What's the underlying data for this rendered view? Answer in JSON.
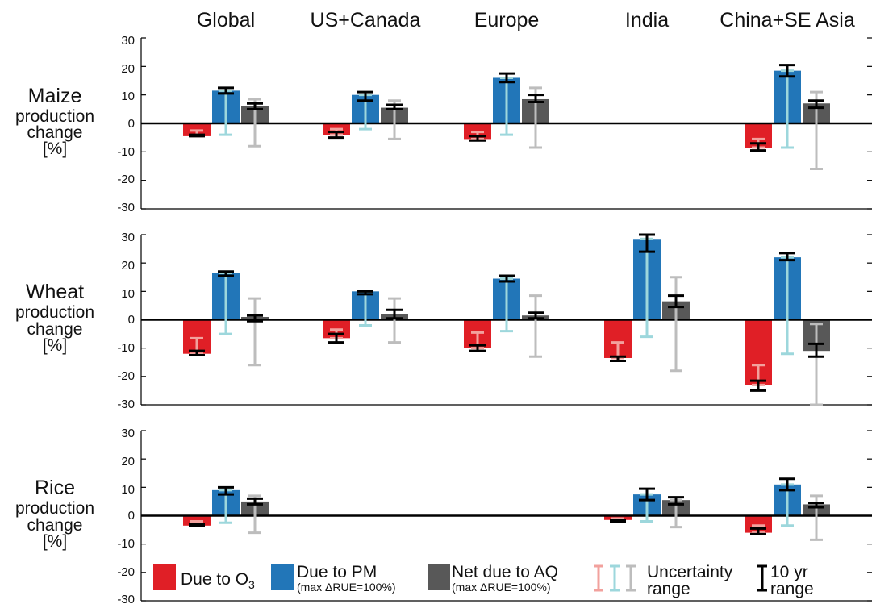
{
  "chart_data": {
    "type": "bar",
    "regions": [
      "Global",
      "US+Canada",
      "Europe",
      "India",
      "China+SE Asia"
    ],
    "panels": [
      {
        "crop": "Maize",
        "ylabel_lines": [
          "production",
          "change",
          "[%]"
        ],
        "ylim": [
          -30,
          30
        ],
        "yticks": [
          "30",
          "20",
          "10",
          "0",
          "-10",
          "-20",
          "-30"
        ],
        "bars": [
          {
            "region": "Global",
            "o3": -4.5,
            "pm": 11.5,
            "aq": 6.0,
            "o3_unc": [
              -4.5,
              -2.5
            ],
            "pm_unc": [
              -4,
              11.5
            ],
            "aq_unc": [
              -8,
              8.5
            ],
            "o3_10yr": [
              -4.5,
              -4.0
            ],
            "pm_10yr": [
              10.5,
              12.5
            ],
            "aq_10yr": [
              5.0,
              7.0
            ]
          },
          {
            "region": "US+Canada",
            "o3": -4.0,
            "pm": 10.0,
            "aq": 5.5,
            "o3_unc": [
              -4.0,
              -2.0
            ],
            "pm_unc": [
              -2,
              10.0
            ],
            "aq_unc": [
              -5.5,
              8.0
            ],
            "o3_10yr": [
              -5.0,
              -3.0
            ],
            "pm_10yr": [
              8.0,
              11.0
            ],
            "aq_10yr": [
              5.0,
              6.5
            ]
          },
          {
            "region": "Europe",
            "o3": -5.5,
            "pm": 16.0,
            "aq": 8.5,
            "o3_unc": [
              -5.5,
              -3.0
            ],
            "pm_unc": [
              -4,
              16.0
            ],
            "aq_unc": [
              -8.5,
              12.5
            ],
            "o3_10yr": [
              -6.0,
              -4.5
            ],
            "pm_10yr": [
              14.5,
              17.5
            ],
            "aq_10yr": [
              7.5,
              10.0
            ]
          },
          {
            "region": "India",
            "o3": null,
            "pm": null,
            "aq": null
          },
          {
            "region": "China+SE Asia",
            "o3": -8.5,
            "pm": 18.5,
            "aq": 7.0,
            "o3_unc": [
              -8.5,
              -5.5
            ],
            "pm_unc": [
              -8.5,
              18.5
            ],
            "aq_unc": [
              -16,
              11.0
            ],
            "o3_10yr": [
              -9.5,
              -7.0
            ],
            "pm_10yr": [
              16.5,
              20.5
            ],
            "aq_10yr": [
              5.5,
              8.0
            ]
          }
        ]
      },
      {
        "crop": "Wheat",
        "ylabel_lines": [
          "production",
          "change",
          "[%]"
        ],
        "ylim": [
          -30,
          30
        ],
        "yticks": [
          "30",
          "20",
          "10",
          "0",
          "-10",
          "-20",
          "-30"
        ],
        "bars": [
          {
            "region": "Global",
            "o3": -12.0,
            "pm": 16.5,
            "aq": 1.0,
            "o3_unc": [
              -12.0,
              -6.5
            ],
            "pm_unc": [
              -5,
              16.5
            ],
            "aq_unc": [
              -16,
              7.5
            ],
            "o3_10yr": [
              -12.5,
              -11.0
            ],
            "pm_10yr": [
              15.5,
              17.0
            ],
            "aq_10yr": [
              -0.5,
              1.5
            ]
          },
          {
            "region": "US+Canada",
            "o3": -6.5,
            "pm": 10.0,
            "aq": 2.0,
            "o3_unc": [
              -6.5,
              -3.5
            ],
            "pm_unc": [
              -2,
              10.0
            ],
            "aq_unc": [
              -8,
              7.5
            ],
            "o3_10yr": [
              -8.0,
              -5.0
            ],
            "pm_10yr": [
              9.0,
              10.0
            ],
            "aq_10yr": [
              0.5,
              3.5
            ]
          },
          {
            "region": "Europe",
            "o3": -10.0,
            "pm": 14.5,
            "aq": 1.5,
            "o3_unc": [
              -10.0,
              -4.5
            ],
            "pm_unc": [
              -4,
              14.5
            ],
            "aq_unc": [
              -13,
              8.5
            ],
            "o3_10yr": [
              -11.0,
              -9.0
            ],
            "pm_10yr": [
              13.5,
              15.5
            ],
            "aq_10yr": [
              0.5,
              2.5
            ]
          },
          {
            "region": "India",
            "o3": -13.5,
            "pm": 28.5,
            "aq": 6.5,
            "o3_unc": [
              -13.5,
              -8.0
            ],
            "pm_unc": [
              -6,
              28.5
            ],
            "aq_unc": [
              -18,
              15.0
            ],
            "o3_10yr": [
              -14.5,
              -13.0
            ],
            "pm_10yr": [
              24.0,
              30.0
            ],
            "aq_10yr": [
              4.5,
              8.5
            ]
          },
          {
            "region": "China+SE Asia",
            "o3": -23.0,
            "pm": 22.0,
            "aq": -11.0,
            "o3_unc": [
              -23.0,
              -16.0
            ],
            "pm_unc": [
              -12,
              22.0
            ],
            "aq_unc": [
              -30,
              -1.5
            ],
            "o3_10yr": [
              -25.0,
              -21.5
            ],
            "pm_10yr": [
              21.0,
              23.5
            ],
            "aq_10yr": [
              -13.0,
              -8.5
            ]
          }
        ]
      },
      {
        "crop": "Rice",
        "ylabel_lines": [
          "production",
          "change",
          "[%]"
        ],
        "ylim": [
          -30,
          30
        ],
        "yticks": [
          "30",
          "20",
          "10",
          "0",
          "-10",
          "-20",
          "-30"
        ],
        "bars": [
          {
            "region": "Global",
            "o3": -3.5,
            "pm": 9.0,
            "aq": 5.0,
            "o3_unc": [
              -3.5,
              -2.0
            ],
            "pm_unc": [
              -2.5,
              9.0
            ],
            "aq_unc": [
              -6,
              7.0
            ],
            "o3_10yr": [
              -3.5,
              -3.0
            ],
            "pm_10yr": [
              7.5,
              10.0
            ],
            "aq_10yr": [
              4.0,
              6.0
            ]
          },
          {
            "region": "US+Canada",
            "o3": null,
            "pm": null,
            "aq": null
          },
          {
            "region": "Europe",
            "o3": null,
            "pm": null,
            "aq": null
          },
          {
            "region": "India",
            "o3": -1.5,
            "pm": 7.5,
            "aq": 5.5,
            "o3_unc": [
              -1.5,
              -1.0
            ],
            "pm_unc": [
              -2,
              7.5
            ],
            "aq_unc": [
              -4,
              5.5
            ],
            "o3_10yr": [
              -2.0,
              -1.5
            ],
            "pm_10yr": [
              5.5,
              9.5
            ],
            "aq_10yr": [
              4.0,
              6.5
            ]
          },
          {
            "region": "China+SE Asia",
            "o3": -6.0,
            "pm": 11.0,
            "aq": 4.0,
            "o3_unc": [
              -6.0,
              -3.5
            ],
            "pm_unc": [
              -3.5,
              11.0
            ],
            "aq_unc": [
              -8.5,
              7.0
            ],
            "o3_10yr": [
              -6.5,
              -4.5
            ],
            "pm_10yr": [
              9.0,
              13.0
            ],
            "aq_10yr": [
              3.0,
              4.5
            ]
          }
        ]
      }
    ]
  },
  "legend": {
    "o3_label_main": "Due to O",
    "o3_label_sub": "3",
    "pm_label": "Due to PM",
    "pm_note": "(max ΔRUE=100%)",
    "aq_label": "Net due to AQ",
    "aq_note": "(max ΔRUE=100%)",
    "unc_label_1": "Uncertainty",
    "unc_label_2": "range",
    "tenyr_label_1": "10 yr",
    "tenyr_label_2": "range"
  },
  "colors": {
    "o3": "#e01f26",
    "pm": "#2276b8",
    "aq": "#585858",
    "o3_unc": "#f2a19d",
    "pm_unc": "#9dd7dc",
    "aq_unc": "#bdbdbd",
    "tenyr": "#000000"
  }
}
